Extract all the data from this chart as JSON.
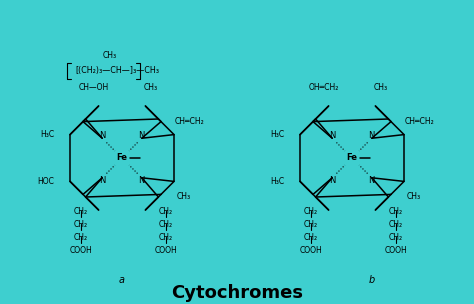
{
  "background_color": "#3ECFCF",
  "title": "Cytochromes",
  "title_fontsize": 13,
  "title_fontweight": "bold",
  "title_color": "black",
  "label_a": "a",
  "label_b": "b",
  "fig_width": 4.74,
  "fig_height": 3.04,
  "dpi": 100
}
